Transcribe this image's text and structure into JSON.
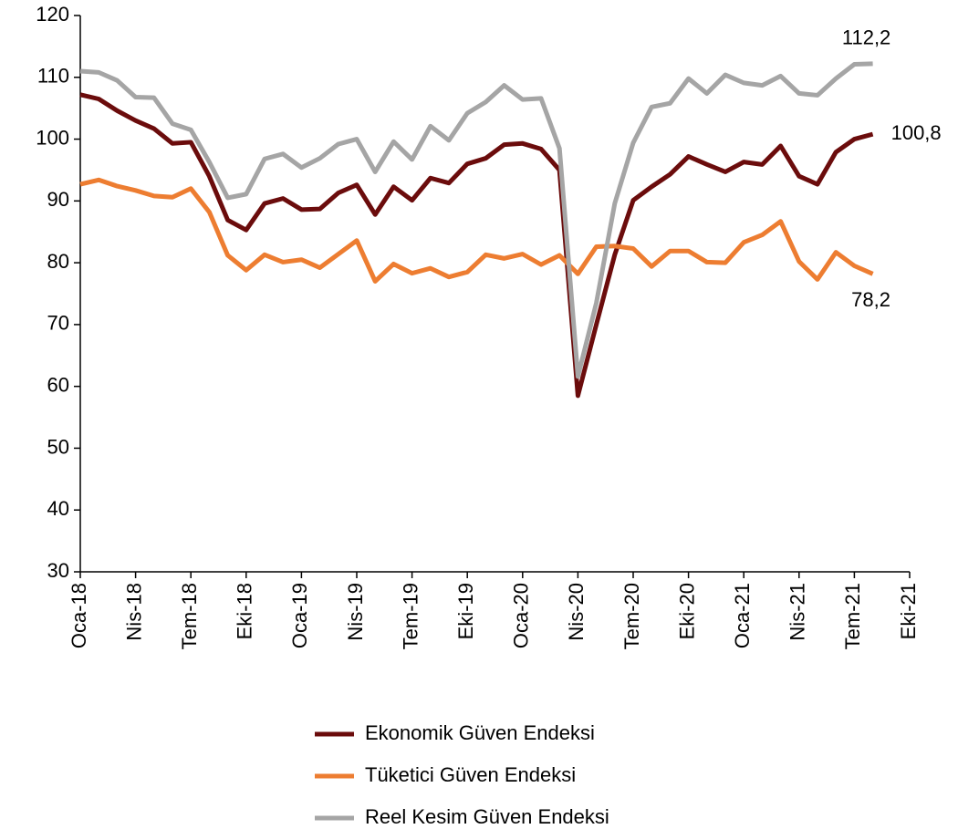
{
  "chart_data": {
    "type": "line",
    "categories": [
      "Oca-18",
      null,
      null,
      "Nis-18",
      null,
      null,
      "Tem-18",
      null,
      null,
      "Eki-18",
      null,
      null,
      "Oca-19",
      null,
      null,
      "Nis-19",
      null,
      null,
      "Tem-19",
      null,
      null,
      "Eki-19",
      null,
      null,
      "Oca-20",
      null,
      null,
      "Nis-20",
      null,
      null,
      "Tem-20",
      null,
      null,
      "Eki-20",
      null,
      null,
      "Oca-21",
      null,
      null,
      "Nis-21",
      null,
      null,
      "Tem-21",
      null,
      null,
      "Eki-21"
    ],
    "series": [
      {
        "name": "Ekonomik Güven Endeksi",
        "color": "#6b0c0c",
        "values": [
          107.2,
          106.5,
          104.6,
          103,
          101.7,
          99.3,
          99.5,
          94,
          86.9,
          85.3,
          89.6,
          90.4,
          88.6,
          88.7,
          91.3,
          92.6,
          87.8,
          92.3,
          90.1,
          93.7,
          92.9,
          96,
          96.9,
          99.1,
          99.3,
          98.4,
          95,
          58.5,
          70,
          81.3,
          90.1,
          92.3,
          94.3,
          97.2,
          95.9,
          94.7,
          96.3,
          95.9,
          98.9,
          94,
          92.7,
          97.9,
          100,
          100.8,
          null,
          null
        ],
        "value_labels": [
          null,
          null,
          null,
          null,
          null,
          null,
          null,
          null,
          null,
          null,
          null,
          null,
          null,
          null,
          null,
          null,
          null,
          null,
          null,
          null,
          null,
          null,
          null,
          null,
          null,
          null,
          null,
          null,
          null,
          null,
          null,
          null,
          null,
          null,
          null,
          null,
          null,
          null,
          null,
          null,
          null,
          null,
          null,
          "100,8",
          null,
          null
        ]
      },
      {
        "name": "Tüketici Güven Endeksi",
        "color": "#ed7d31",
        "values": [
          92.7,
          93.4,
          92.4,
          91.7,
          90.8,
          90.6,
          92,
          88.2,
          81.2,
          78.8,
          81.3,
          80.1,
          80.5,
          79.2,
          81.4,
          83.6,
          77,
          79.8,
          78.3,
          79.1,
          77.7,
          78.5,
          81.3,
          80.7,
          81.4,
          79.7,
          81.2,
          78.2,
          82.6,
          82.7,
          82.3,
          79.4,
          81.9,
          81.9,
          80.1,
          80,
          83.3,
          84.5,
          86.7,
          80.2,
          77.3,
          81.7,
          79.5,
          78.2,
          null,
          null
        ],
        "value_labels": [
          null,
          null,
          null,
          null,
          null,
          null,
          null,
          null,
          null,
          null,
          null,
          null,
          null,
          null,
          null,
          null,
          null,
          null,
          null,
          null,
          null,
          null,
          null,
          null,
          null,
          null,
          null,
          null,
          null,
          null,
          null,
          null,
          null,
          null,
          null,
          null,
          null,
          null,
          null,
          null,
          null,
          null,
          null,
          "78,2",
          null,
          null
        ]
      },
      {
        "name": "Reel Kesim Güven Endeksi",
        "color": "#a5a5a5",
        "values": [
          111,
          110.8,
          109.5,
          106.8,
          106.7,
          102.5,
          101.5,
          96.3,
          90.5,
          91.1,
          96.8,
          97.6,
          95.4,
          96.9,
          99.2,
          100,
          94.7,
          99.6,
          96.7,
          102.1,
          99.8,
          104.2,
          106,
          108.7,
          106.4,
          106.6,
          98.5,
          61.6,
          73.5,
          89.6,
          99.4,
          105.2,
          105.8,
          109.8,
          107.4,
          110.4,
          109.1,
          108.7,
          110.2,
          107.4,
          107.1,
          109.8,
          112.1,
          112.2,
          null,
          null
        ],
        "value_labels": [
          null,
          null,
          null,
          null,
          null,
          null,
          null,
          null,
          null,
          null,
          null,
          null,
          null,
          null,
          null,
          null,
          null,
          null,
          null,
          null,
          null,
          null,
          null,
          null,
          null,
          null,
          null,
          null,
          null,
          null,
          null,
          null,
          null,
          null,
          null,
          null,
          null,
          null,
          null,
          null,
          null,
          null,
          null,
          "112,2",
          null,
          null
        ]
      }
    ],
    "ylim": [
      30,
      120
    ],
    "yticks": [
      30,
      40,
      50,
      60,
      70,
      80,
      90,
      100,
      110,
      120
    ],
    "legend": "bottom"
  }
}
